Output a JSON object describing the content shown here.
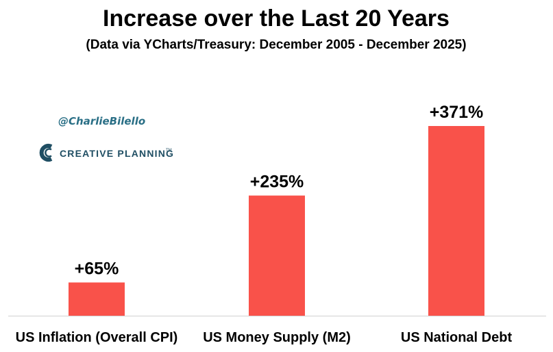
{
  "chart_data": {
    "type": "bar",
    "title": "Increase over the Last 20 Years",
    "subtitle": "(Data via YCharts/Treasury: December 2005 - December 2025)",
    "categories": [
      "US Inflation (Overall CPI)",
      "US Money Supply (M2)",
      "US National Debt"
    ],
    "values": [
      65,
      235,
      371
    ],
    "value_labels": [
      "+65%",
      "+235%",
      "+371%"
    ],
    "unit": "%",
    "ylim": [
      0,
      371
    ],
    "grid": false,
    "legend": "none",
    "bar_color": "#f9524a"
  },
  "watermark": {
    "handle": "@CharlieBilello",
    "brand_name": "CREATIVE PLANNING",
    "brand_tm": "TM",
    "handle_color": "#2a6f86",
    "brand_color": "#1f4e63"
  },
  "colors": {
    "axis": "#d0d0d0",
    "text": "#000000"
  }
}
